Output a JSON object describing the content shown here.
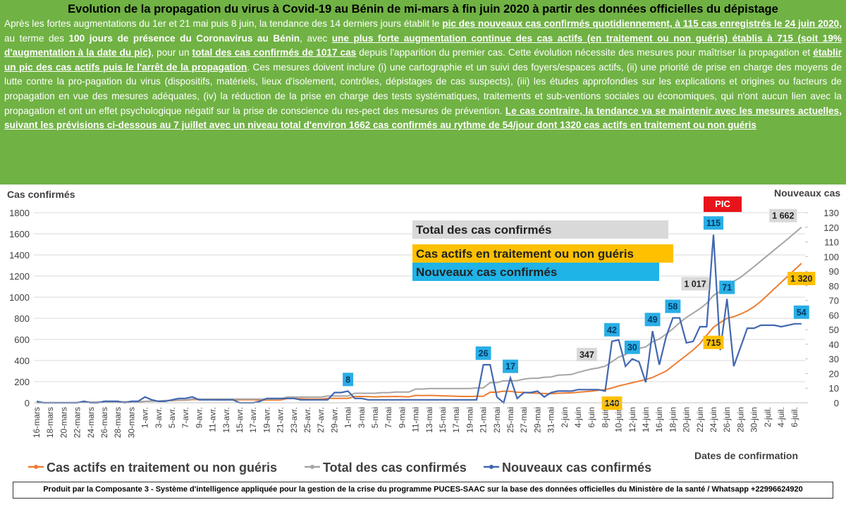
{
  "header": {
    "title": "Evolution de la propagation du virus à Covid-19 au Bénin de mi-mars à fin juin 2020 à partir des données officielles du dépistage",
    "paragraph": [
      {
        "text": "Après les fortes augmentations  du 1er et 21 mai puis  8 juin, la tendance des 14 derniers jours établit le ",
        "style": "plain"
      },
      {
        "text": "pic des nouveaux cas confirmés quotidiennement,  à 115 cas enregistrés le 24 juin 2020,",
        "style": "underline"
      },
      {
        "text": " au terme des ",
        "style": "plain"
      },
      {
        "text": "100 jours de présence du Coronavirus au Bénin",
        "style": "bold"
      },
      {
        "text": ", avec ",
        "style": "plain"
      },
      {
        "text": "une plus forte augmentation continue des cas actifs (en traitement ou non guéris) établis à 715 (soit 19% d'augmentation à la date du pic)",
        "style": "underline"
      },
      {
        "text": ", pour un ",
        "style": "plain"
      },
      {
        "text": "total des cas confirmés de 1017 cas",
        "style": "underline"
      },
      {
        "text": " depuis l'apparition du premier cas. Cette évolution nécessite des mesures pour maîtriser la propagation et ",
        "style": "plain"
      },
      {
        "text": "établir un pic des cas actifs puis le l'arrêt de la propagation",
        "style": "underline"
      },
      {
        "text": ". Ces mesures doivent inclure (i) une cartographie et un suivi des foyers/espaces actifs, (ii) une priorité de prise en charge des moyens de lutte contre la pro-pagation du virus (dispositifs, matériels, lieux d'isolement, contrôles, dépistages de cas suspects), (iii) les études approfondies sur les explications et origines ou facteurs de propagation en vue des mesures adéquates, (iv) la réduction de la prise en charge des tests systématiques, traitements et  sub-ventions sociales ou économiques, qui n'ont aucun lien avec la propagation et ont un effet psychologique négatif sur la prise de conscience du res-pect des mesures de prévention. ",
        "style": "plain"
      },
      {
        "text": "Le cas contraire, la tendance va se maintenir avec les mesures actuelles, suivant les prévisions ci-dessous au 7 juillet avec un niveau total d'environ 1662 cas confirmés au rythme de 54/jour dont 1320 cas actifs en traitement ou non guéris",
        "style": "underline"
      }
    ]
  },
  "chart_data": {
    "type": "line",
    "ylabel": "Cas confirmés",
    "y2label": "Nouveaux cas",
    "xlabel": "Dates de confirmation",
    "peak_annotation": "PIC",
    "grid": true,
    "categories": [
      "16-mars",
      null,
      "18-mars",
      null,
      "20-mars",
      null,
      "22-mars",
      null,
      "24-mars",
      null,
      "26-mars",
      null,
      "28-mars",
      null,
      "30-mars",
      null,
      "1-avr.",
      null,
      "3-avr.",
      null,
      "5-avr.",
      null,
      "7-avr.",
      null,
      "9-avr.",
      null,
      "11-avr.",
      null,
      "13-avr.",
      null,
      "15-avr.",
      null,
      "17-avr.",
      null,
      "19-avr.",
      null,
      "21-avr.",
      null,
      "23-avr.",
      null,
      "25-avr.",
      null,
      "27-avr.",
      null,
      "29-avr.",
      null,
      "1-mai",
      null,
      "3-mai",
      null,
      "5-mai",
      null,
      "7-mai",
      null,
      "9-mai",
      null,
      "11-mai",
      null,
      "13-mai",
      null,
      "15-mai",
      null,
      "17-mai",
      null,
      "19-mai",
      null,
      "21-mai",
      null,
      "23-mai",
      null,
      "25-mai",
      null,
      "27-mai",
      null,
      "29-mai",
      null,
      "31-mai",
      null,
      "2-juin",
      null,
      "4-juin",
      null,
      "6-juin",
      null,
      "8-juin",
      null,
      "10-juin",
      null,
      "12-juin",
      null,
      "14-juin",
      null,
      "16-juin",
      null,
      "18-juin",
      null,
      "20-juin",
      null,
      "22-juin",
      null,
      "24-juin",
      null,
      "26-juin",
      null,
      "28-juin",
      null,
      "30-juin",
      null,
      "2-juil.",
      null,
      "4-juil.",
      null,
      "6-juil.",
      null
    ],
    "ylim": [
      0,
      1800
    ],
    "yticks": [
      0,
      200,
      400,
      600,
      800,
      1000,
      1200,
      1400,
      1600,
      1800
    ],
    "y2lim": [
      0,
      130
    ],
    "y2ticks": [
      0,
      10,
      20,
      30,
      40,
      50,
      60,
      70,
      80,
      90,
      100,
      110,
      120,
      130
    ],
    "series": [
      {
        "name": "Cas actifs en traitement ou non guéris",
        "color": "#ed7d31",
        "label_color": "#ffc000",
        "axis": "y",
        "values": [
          1,
          1,
          1,
          1,
          1,
          1,
          2,
          5,
          6,
          6,
          6,
          6,
          9,
          9,
          9,
          9,
          13,
          16,
          16,
          20,
          20,
          24,
          24,
          30,
          30,
          30,
          30,
          28,
          28,
          28,
          28,
          28,
          28,
          26,
          26,
          26,
          26,
          40,
          40,
          38,
          36,
          36,
          36,
          42,
          42,
          42,
          42,
          60,
          60,
          58,
          56,
          58,
          58,
          60,
          58,
          56,
          70,
          68,
          70,
          68,
          66,
          64,
          62,
          60,
          60,
          62,
          62,
          100,
          100,
          110,
          108,
          100,
          98,
          92,
          90,
          88,
          86,
          90,
          92,
          94,
          100,
          105,
          110,
          118,
          125,
          140,
          160,
          175,
          190,
          205,
          220,
          240,
          270,
          300,
          350,
          400,
          450,
          500,
          560,
          640,
          715,
          760,
          800,
          815,
          840,
          870,
          910,
          960,
          1020,
          1080,
          1140,
          1200,
          1260,
          1320
        ],
        "value_labels": [
          null,
          null,
          null,
          null,
          null,
          null,
          null,
          null,
          null,
          null,
          null,
          null,
          null,
          null,
          null,
          null,
          null,
          null,
          null,
          null,
          null,
          null,
          null,
          null,
          null,
          null,
          null,
          null,
          null,
          null,
          null,
          null,
          null,
          null,
          null,
          null,
          null,
          null,
          null,
          null,
          null,
          null,
          null,
          null,
          null,
          null,
          null,
          null,
          null,
          null,
          null,
          null,
          null,
          null,
          null,
          null,
          null,
          null,
          null,
          null,
          null,
          null,
          null,
          null,
          null,
          null,
          null,
          null,
          null,
          null,
          null,
          null,
          null,
          null,
          null,
          null,
          null,
          null,
          null,
          null,
          null,
          null,
          null,
          null,
          null,
          "140",
          null,
          null,
          null,
          null,
          null,
          null,
          null,
          null,
          null,
          null,
          null,
          null,
          null,
          null,
          "715",
          null,
          null,
          null,
          null,
          null,
          null,
          null,
          null,
          null,
          null,
          null,
          null,
          "1 320"
        ]
      },
      {
        "name": "Total des cas confirmés",
        "color": "#a5a5a5",
        "label_color": "#d9d9d9",
        "axis": "y",
        "values": [
          1,
          1,
          1,
          1,
          1,
          1,
          2,
          5,
          6,
          6,
          6,
          6,
          9,
          9,
          9,
          9,
          13,
          16,
          16,
          22,
          22,
          26,
          26,
          35,
          35,
          35,
          35,
          35,
          35,
          35,
          35,
          35,
          35,
          35,
          35,
          35,
          35,
          54,
          54,
          54,
          54,
          54,
          54,
          64,
          64,
          64,
          64,
          90,
          90,
          90,
          90,
          96,
          96,
          102,
          102,
          102,
          130,
          130,
          135,
          135,
          135,
          135,
          135,
          135,
          135,
          140,
          142,
          191,
          191,
          208,
          208,
          210,
          224,
          232,
          232,
          242,
          244,
          261,
          264,
          268,
          288,
          305,
          320,
          330,
          347,
          389,
          432,
          457,
          487,
          515,
          529,
          578,
          604,
          650,
          700,
          758,
          808,
          849,
          891,
          943,
          1017,
          1053,
          1124,
          1149,
          1187,
          1238,
          1289,
          1342,
          1395,
          1448,
          1500,
          1553,
          1607,
          1662
        ],
        "value_labels": [
          null,
          null,
          null,
          null,
          null,
          null,
          null,
          null,
          null,
          null,
          null,
          null,
          null,
          null,
          null,
          null,
          null,
          null,
          null,
          null,
          null,
          null,
          null,
          null,
          null,
          null,
          null,
          null,
          null,
          null,
          null,
          null,
          null,
          null,
          null,
          null,
          null,
          null,
          null,
          null,
          null,
          null,
          null,
          null,
          null,
          null,
          null,
          null,
          null,
          null,
          null,
          null,
          null,
          null,
          null,
          null,
          null,
          null,
          null,
          null,
          null,
          null,
          null,
          null,
          null,
          null,
          null,
          null,
          null,
          null,
          null,
          null,
          null,
          null,
          null,
          null,
          null,
          null,
          null,
          null,
          null,
          null,
          null,
          null,
          "347",
          null,
          null,
          null,
          null,
          null,
          null,
          null,
          null,
          null,
          null,
          null,
          null,
          null,
          null,
          null,
          "1 017",
          null,
          null,
          null,
          null,
          null,
          null,
          null,
          null,
          null,
          null,
          null,
          null,
          "1 662"
        ]
      },
      {
        "name": "Nouveaux cas confirmés",
        "color": "#4267b0",
        "label_color": "#29aee6",
        "axis": "y2",
        "values": [
          1,
          0,
          0,
          0,
          0,
          0,
          0,
          1,
          0,
          0,
          1,
          1,
          1,
          0,
          1,
          1,
          4,
          2,
          1,
          1,
          2,
          3,
          3,
          4,
          2,
          2,
          2,
          2,
          2,
          2,
          0,
          0,
          0,
          1,
          3,
          3,
          3,
          3,
          3,
          2,
          2,
          2,
          2,
          2,
          7,
          7,
          8,
          3,
          3,
          2,
          2,
          2,
          2,
          2,
          2,
          2,
          2,
          2,
          2,
          2,
          2,
          2,
          2,
          2,
          2,
          2,
          26,
          26,
          4,
          0,
          17,
          3,
          7,
          7,
          8,
          4,
          7,
          8,
          8,
          8,
          9,
          9,
          9,
          9,
          8,
          42,
          43,
          25,
          30,
          28,
          14,
          49,
          26,
          45,
          58,
          58,
          41,
          42,
          52,
          52,
          115,
          36,
          71,
          25,
          38,
          51,
          51,
          53,
          53,
          53,
          52,
          53,
          54,
          54
        ],
        "value_labels": [
          null,
          null,
          null,
          null,
          null,
          null,
          null,
          null,
          null,
          null,
          null,
          null,
          null,
          null,
          null,
          null,
          null,
          null,
          null,
          null,
          null,
          null,
          null,
          null,
          null,
          null,
          null,
          null,
          null,
          null,
          null,
          null,
          null,
          null,
          null,
          null,
          null,
          null,
          null,
          null,
          null,
          null,
          null,
          null,
          null,
          null,
          "8",
          null,
          null,
          null,
          null,
          null,
          null,
          null,
          null,
          null,
          null,
          null,
          null,
          null,
          null,
          null,
          null,
          null,
          null,
          null,
          "26",
          null,
          null,
          null,
          "17",
          null,
          null,
          null,
          null,
          null,
          null,
          null,
          null,
          null,
          null,
          null,
          null,
          null,
          null,
          "42",
          null,
          null,
          "30",
          null,
          null,
          "49",
          null,
          null,
          "58",
          null,
          null,
          null,
          null,
          null,
          "115",
          null,
          "71",
          null,
          null,
          null,
          null,
          null,
          null,
          null,
          null,
          null,
          null,
          "54"
        ]
      }
    ]
  },
  "footer": "Produit par la Composante  3 - Système d'intelligence appliquée pour la gestion de la crise du programme PUCES-SAAC  sur la base des données officielles du Ministère de la santé / Whatsapp +22996624920"
}
